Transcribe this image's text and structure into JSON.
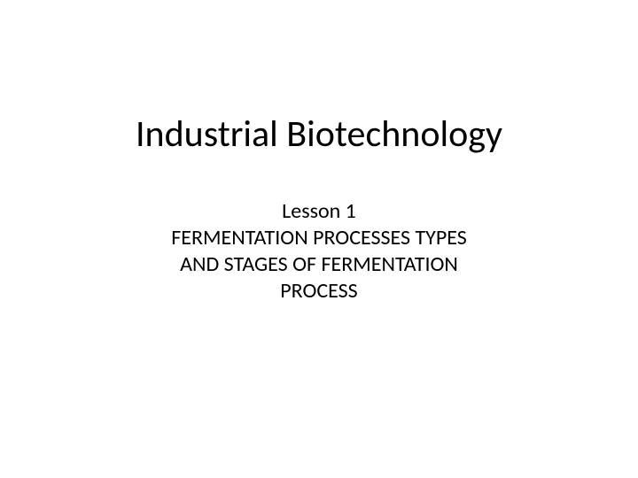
{
  "slide": {
    "title": "Industrial Biotechnology",
    "subtitle": "Lesson 1\nFERMENTATION PROCESSES TYPES\nAND STAGES OF FERMENTATION\nPROCESS",
    "title_fontsize": 42,
    "subtitle_fontsize": 24,
    "title_color": "#000000",
    "subtitle_color": "#000000",
    "background_color": "#ffffff",
    "font_family": "Calibri"
  }
}
